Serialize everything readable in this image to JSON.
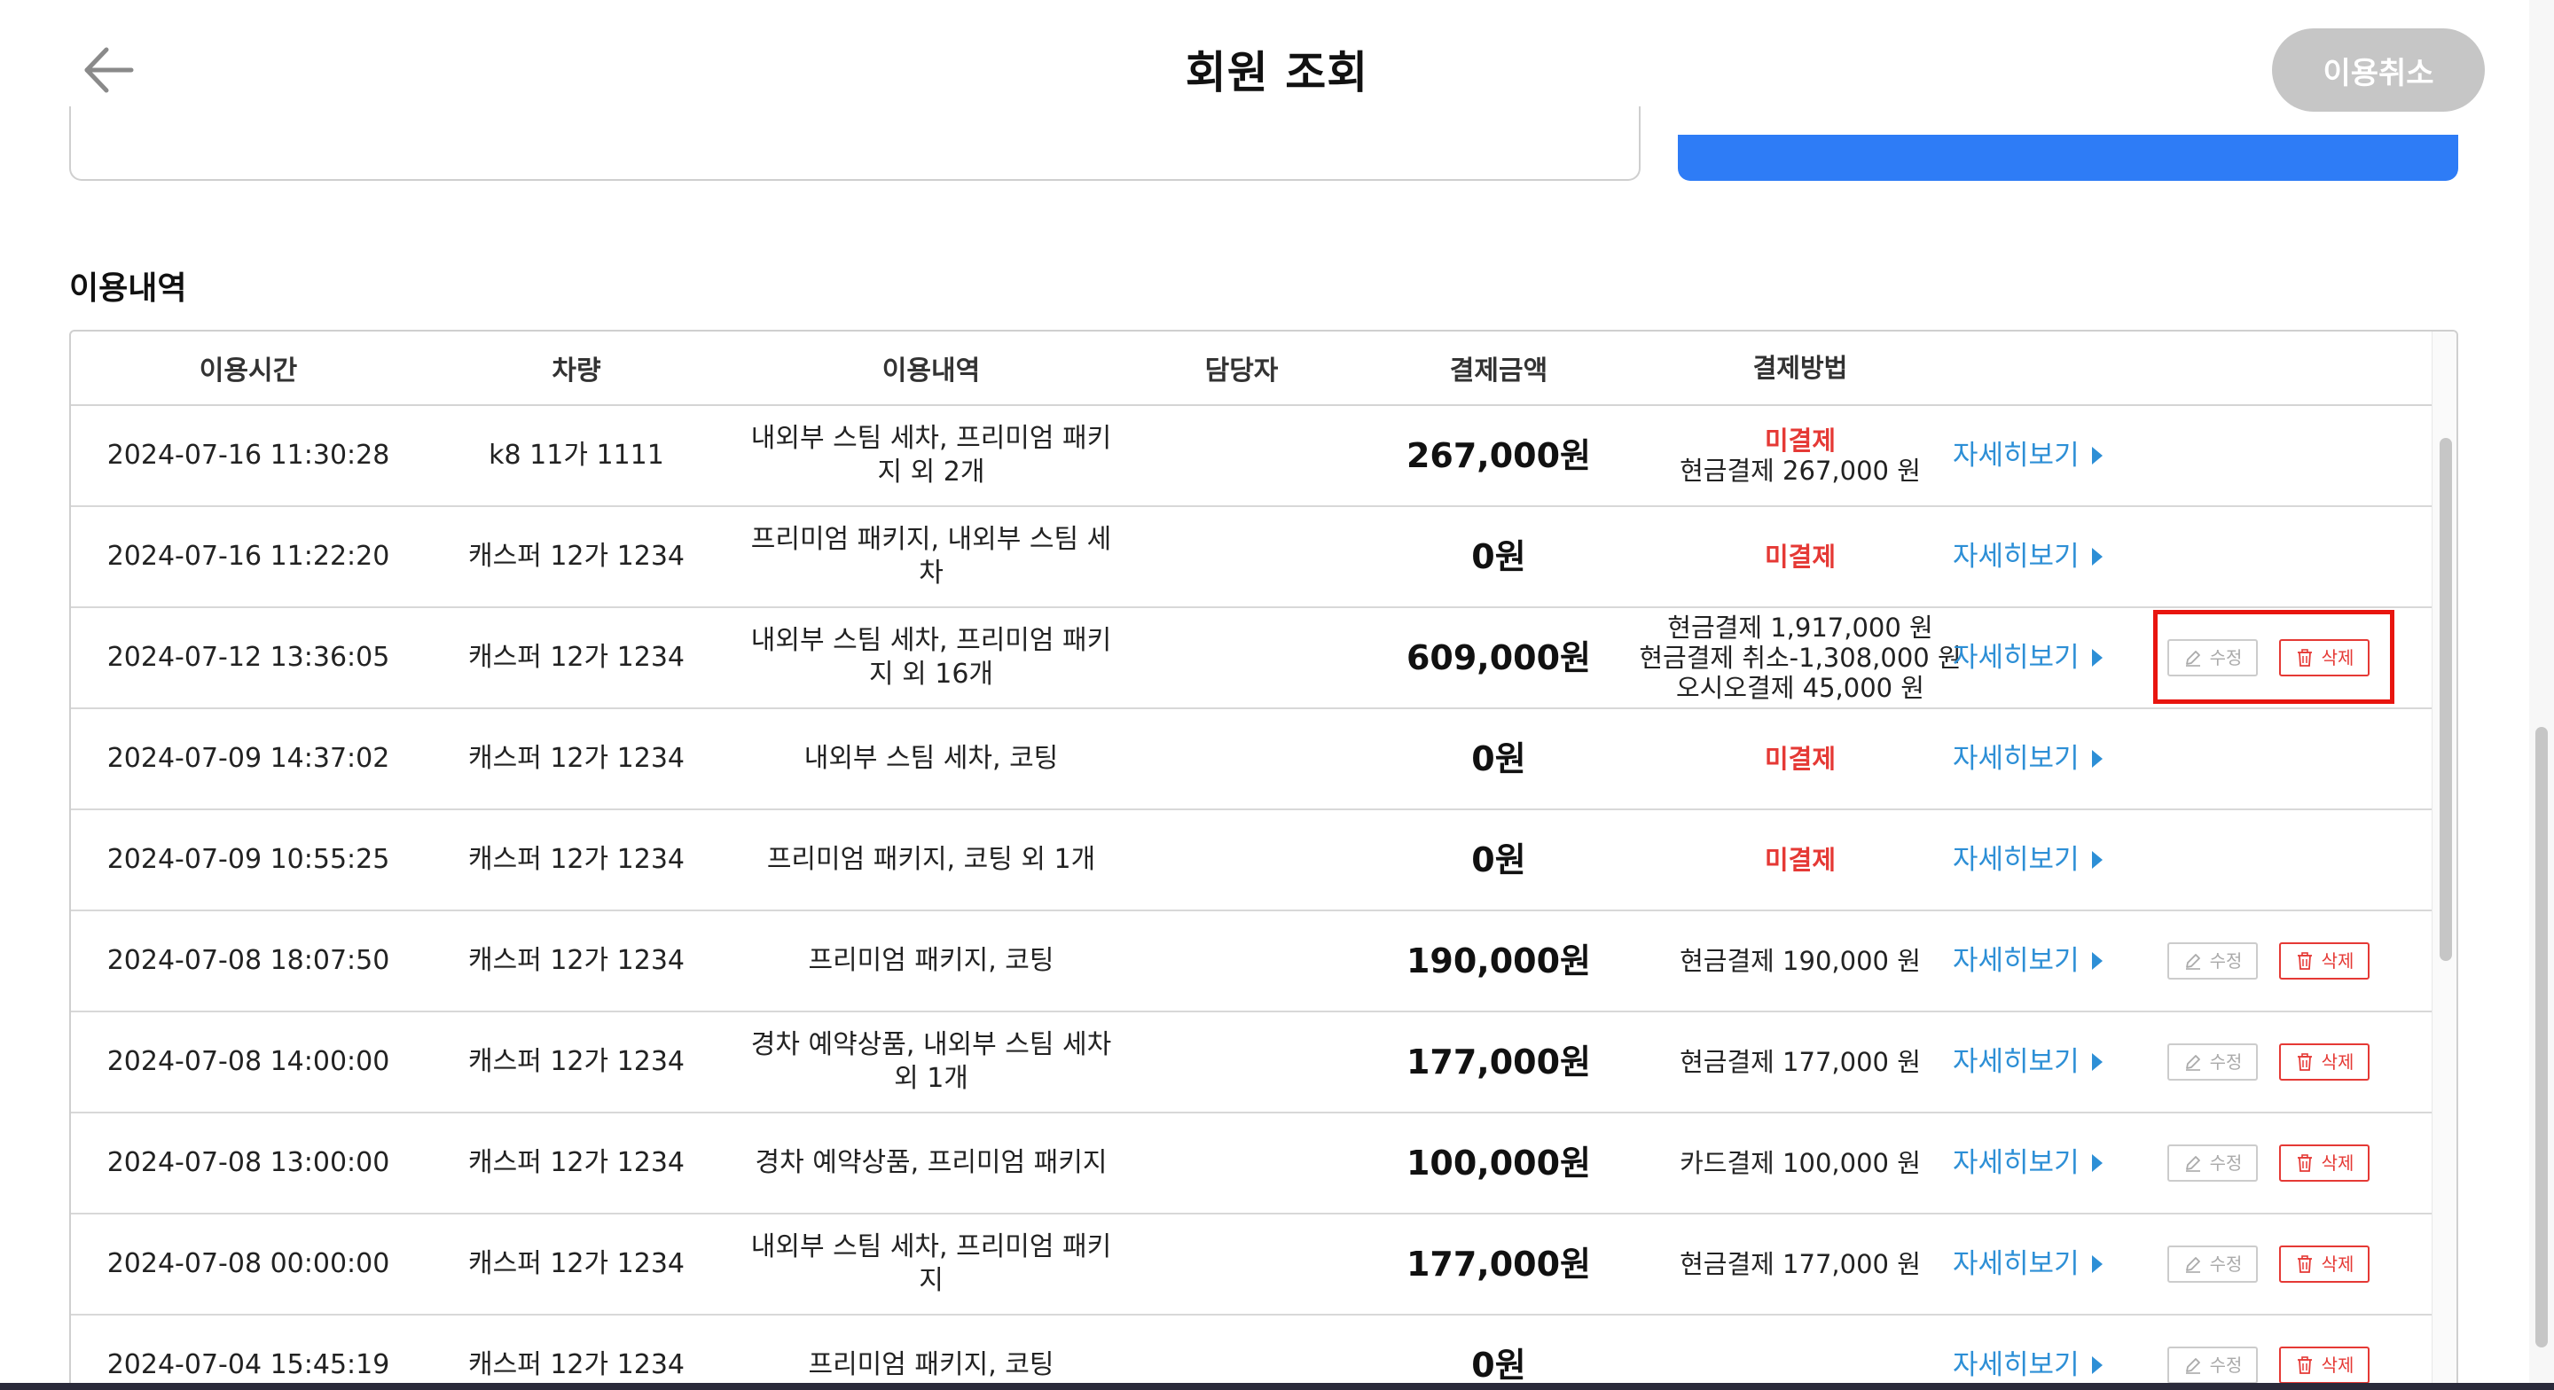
{
  "header": {
    "title": "회원 조회",
    "cancel_use_label": "이용취소"
  },
  "section_title": "이용내역",
  "table": {
    "headers": {
      "time": "이용시간",
      "car": "차량",
      "items": "이용내역",
      "staff": "담당자",
      "amount": "결제금액",
      "method": "결제방법"
    },
    "detail_label": "자세히보기",
    "edit_label": "수정",
    "delete_label": "삭제",
    "rows": [
      {
        "time": "2024-07-16 11:30:28",
        "car": "k8 11가 1111",
        "items": "내외부 스팀 세차, 프리미엄 패키지 외 2개",
        "staff": "",
        "amount": "267,000원",
        "unpaid": "미결제",
        "m1": "현금결제 267,000 원",
        "m2": "",
        "m3": ""
      },
      {
        "time": "2024-07-16 11:22:20",
        "car": "캐스퍼 12가 1234",
        "items": "프리미엄 패키지, 내외부 스팀 세차",
        "staff": "",
        "amount": "0원",
        "unpaid": "미결제",
        "m1": "",
        "m2": "",
        "m3": ""
      },
      {
        "time": "2024-07-12 13:36:05",
        "car": "캐스퍼 12가 1234",
        "items": "내외부 스팀 세차, 프리미엄 패키지 외 16개",
        "staff": "",
        "amount": "609,000원",
        "unpaid": "",
        "m1": "현금결제 1,917,000 원",
        "m2": "현금결제 취소-1,308,000 원",
        "m3": "오시오결제 45,000 원"
      },
      {
        "time": "2024-07-09 14:37:02",
        "car": "캐스퍼 12가 1234",
        "items": "내외부 스팀 세차, 코팅",
        "staff": "",
        "amount": "0원",
        "unpaid": "미결제",
        "m1": "",
        "m2": "",
        "m3": ""
      },
      {
        "time": "2024-07-09 10:55:25",
        "car": "캐스퍼 12가 1234",
        "items": "프리미엄 패키지, 코팅 외 1개",
        "staff": "",
        "amount": "0원",
        "unpaid": "미결제",
        "m1": "",
        "m2": "",
        "m3": ""
      },
      {
        "time": "2024-07-08 18:07:50",
        "car": "캐스퍼 12가 1234",
        "items": "프리미엄 패키지, 코팅",
        "staff": "",
        "amount": "190,000원",
        "unpaid": "",
        "m1": "현금결제 190,000 원",
        "m2": "",
        "m3": ""
      },
      {
        "time": "2024-07-08 14:00:00",
        "car": "캐스퍼 12가 1234",
        "items": "경차 예약상품, 내외부 스팀 세차 외 1개",
        "staff": "",
        "amount": "177,000원",
        "unpaid": "",
        "m1": "현금결제 177,000 원",
        "m2": "",
        "m3": ""
      },
      {
        "time": "2024-07-08 13:00:00",
        "car": "캐스퍼 12가 1234",
        "items": "경차 예약상품, 프리미엄 패키지",
        "staff": "",
        "amount": "100,000원",
        "unpaid": "",
        "m1": "카드결제 100,000 원",
        "m2": "",
        "m3": ""
      },
      {
        "time": "2024-07-08 00:00:00",
        "car": "캐스퍼 12가 1234",
        "items": "내외부 스팀 세차, 프리미엄 패키지",
        "staff": "",
        "amount": "177,000원",
        "unpaid": "",
        "m1": "현금결제 177,000 원",
        "m2": "",
        "m3": ""
      },
      {
        "time": "2024-07-04 15:45:19",
        "car": "캐스퍼 12가 1234",
        "items": "프리미엄 패키지, 코팅",
        "staff": "",
        "amount": "0원",
        "unpaid": "",
        "m1": "",
        "m2": "",
        "m3": ""
      }
    ],
    "actions_visible": [
      false,
      false,
      true,
      false,
      false,
      true,
      true,
      true,
      true,
      true
    ]
  },
  "colors": {
    "accent_blue": "#2e7cf6",
    "link_blue": "#2d8fd6",
    "unpaid_red": "#e53935",
    "highlight_red": "#e8150f",
    "disabled_gray": "#c6c6c6"
  },
  "icons": {
    "back": "arrow-left-icon",
    "detail": "triangle-right-icon",
    "edit": "pencil-icon",
    "delete": "trash-icon"
  }
}
